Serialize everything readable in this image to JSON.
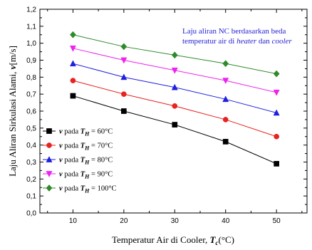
{
  "chart_data": {
    "type": "line",
    "x": [
      10,
      20,
      30,
      40,
      50
    ],
    "xlim": [
      3.5,
      56
    ],
    "ylim": [
      0.0,
      1.2
    ],
    "xticks": [
      "10",
      "20",
      "30",
      "40",
      "50"
    ],
    "yticks": [
      "0,0",
      "0,1",
      "0,2",
      "0,3",
      "0,4",
      "0,5",
      "0,6",
      "0,7",
      "0,8",
      "0,9",
      "1,0",
      "1,1",
      "1,2"
    ],
    "xlabel": {
      "main": "Temperatur Air di Cooler, ",
      "sym": "T",
      "sub": "c",
      "unit": "(°C)"
    },
    "ylabel": {
      "main": "Laju Aliran Sirkulasi Alami, ",
      "sym": "v",
      "unit": "[m/s]"
    },
    "annotation": {
      "line1": "Laju aliran NC berdasarkan beda",
      "line2_a": "temperatur air di ",
      "line2_b": "heater",
      "line2_c": " dan ",
      "line2_d": "cooler"
    },
    "grid": false,
    "legend_position": "bottom-left",
    "series": [
      {
        "name": "60",
        "values": [
          0.69,
          0.6,
          0.52,
          0.42,
          0.29
        ],
        "color": "#000000",
        "marker": "square"
      },
      {
        "name": "70",
        "values": [
          0.78,
          0.7,
          0.63,
          0.55,
          0.45
        ],
        "color": "#e8231f",
        "marker": "circle"
      },
      {
        "name": "80",
        "values": [
          0.88,
          0.8,
          0.74,
          0.67,
          0.59
        ],
        "color": "#1f1fe0",
        "marker": "triangle-up"
      },
      {
        "name": "90",
        "values": [
          0.97,
          0.9,
          0.84,
          0.78,
          0.71
        ],
        "color": "#ee22ee",
        "marker": "triangle-down"
      },
      {
        "name": "100",
        "values": [
          1.05,
          0.98,
          0.93,
          0.88,
          0.82
        ],
        "color": "#2f8a2a",
        "marker": "diamond"
      }
    ],
    "legend_template": {
      "sym": "v",
      "pada": " pada ",
      "T": "T",
      "sub": "H",
      "eq": " = ",
      "unit": "°C"
    }
  }
}
